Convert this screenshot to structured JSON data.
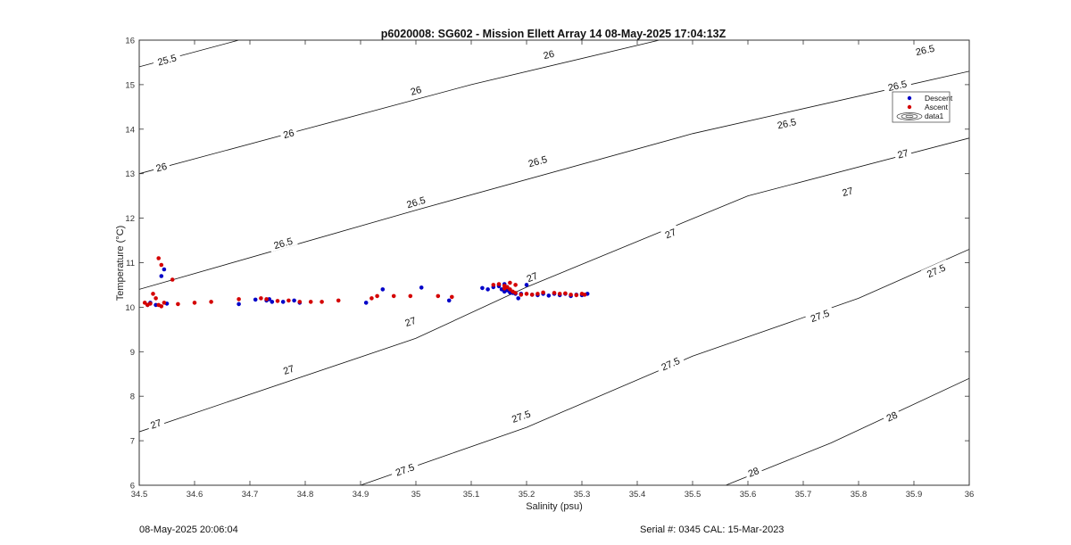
{
  "footer": {
    "left": "08-May-2025 20:06:04",
    "right": "Serial #: 0345  CAL: 15-Mar-2023"
  },
  "colors": {
    "descent": "#0000c8",
    "ascent": "#d40000",
    "contour": "#111111"
  },
  "chart_data": {
    "type": "scatter",
    "title": "p6020008: SG602 - Mission Ellett Array 14 08-May-2025 17:04:13Z",
    "xlabel": "Salinity (psu)",
    "ylabel": "Temperature (°C)",
    "xlim": [
      34.5,
      36
    ],
    "ylim": [
      6,
      16
    ],
    "xticks": [
      34.5,
      34.6,
      34.7,
      34.8,
      34.9,
      35,
      35.1,
      35.2,
      35.3,
      35.4,
      35.5,
      35.6,
      35.7,
      35.8,
      35.9,
      36
    ],
    "xtick_labels": [
      "34.5",
      "34.6",
      "34.7",
      "34.8",
      "34.9",
      "35",
      "35.1",
      "35.2",
      "35.3",
      "35.4",
      "35.5",
      "35.6",
      "35.7",
      "35.8",
      "35.9",
      "36"
    ],
    "yticks": [
      6,
      7,
      8,
      9,
      10,
      11,
      12,
      13,
      14,
      15,
      16
    ],
    "ytick_labels": [
      "6",
      "7",
      "8",
      "9",
      "10",
      "11",
      "12",
      "13",
      "14",
      "15",
      "16"
    ],
    "grid": false,
    "legend": {
      "position": "top-right",
      "entries": [
        "Descent",
        "Ascent",
        "data1"
      ]
    },
    "contours": [
      {
        "level": "25.5",
        "points": [
          [
            34.5,
            15.4
          ],
          [
            34.68,
            16.0
          ]
        ],
        "labels": [
          {
            "x": 34.55,
            "y": 15.56
          }
        ]
      },
      {
        "level": "26",
        "points": [
          [
            34.5,
            13.0
          ],
          [
            34.8,
            14.0
          ],
          [
            35.1,
            15.0
          ],
          [
            35.44,
            16.0
          ]
        ],
        "labels": [
          {
            "x": 34.54,
            "y": 13.15
          },
          {
            "x": 34.77,
            "y": 13.9
          },
          {
            "x": 35.0,
            "y": 14.87
          },
          {
            "x": 35.24,
            "y": 15.68
          }
        ]
      },
      {
        "level": "26.5",
        "points": [
          [
            34.5,
            10.4
          ],
          [
            35.0,
            12.18
          ],
          [
            35.5,
            13.9
          ],
          [
            36.0,
            15.3
          ]
        ],
        "labels": [
          {
            "x": 34.76,
            "y": 11.44
          },
          {
            "x": 35.0,
            "y": 12.36
          },
          {
            "x": 35.22,
            "y": 13.28
          },
          {
            "x": 35.67,
            "y": 14.13
          },
          {
            "x": 35.87,
            "y": 14.98
          },
          {
            "x": 35.92,
            "y": 15.78
          }
        ]
      },
      {
        "level": "27",
        "points": [
          [
            34.5,
            7.2
          ],
          [
            35.0,
            9.3
          ],
          [
            35.2,
            10.45
          ],
          [
            35.6,
            12.5
          ],
          [
            36.0,
            13.8
          ]
        ],
        "labels": [
          {
            "x": 34.53,
            "y": 7.38
          },
          {
            "x": 34.77,
            "y": 8.6
          },
          {
            "x": 34.99,
            "y": 9.68
          },
          {
            "x": 35.21,
            "y": 10.68
          },
          {
            "x": 35.46,
            "y": 11.66
          },
          {
            "x": 35.78,
            "y": 12.6
          },
          {
            "x": 35.88,
            "y": 13.45
          }
        ]
      },
      {
        "level": "27.5",
        "points": [
          [
            34.9,
            6.0
          ],
          [
            35.2,
            7.3
          ],
          [
            35.5,
            8.9
          ],
          [
            35.8,
            10.2
          ],
          [
            36.0,
            11.3
          ]
        ],
        "labels": [
          {
            "x": 34.98,
            "y": 6.35
          },
          {
            "x": 35.19,
            "y": 7.55
          },
          {
            "x": 35.46,
            "y": 8.73
          },
          {
            "x": 35.73,
            "y": 9.81
          },
          {
            "x": 35.94,
            "y": 10.82
          }
        ]
      },
      {
        "level": "28",
        "points": [
          [
            35.56,
            6.0
          ],
          [
            35.75,
            6.95
          ],
          [
            36.0,
            8.4
          ]
        ],
        "labels": [
          {
            "x": 35.61,
            "y": 6.3
          },
          {
            "x": 35.86,
            "y": 7.55
          }
        ]
      }
    ],
    "series": [
      {
        "name": "Descent",
        "marker": "filled-circle",
        "x": [
          34.515,
          34.52,
          34.53,
          34.54,
          34.545,
          34.55,
          34.68,
          34.71,
          34.73,
          34.735,
          34.74,
          34.76,
          34.78,
          34.79,
          34.91,
          34.94,
          35.01,
          35.06,
          35.12,
          35.13,
          35.14,
          35.15,
          35.155,
          35.16,
          35.165,
          35.17,
          35.175,
          35.18,
          35.185,
          35.19,
          35.2,
          35.21,
          35.22,
          35.23,
          35.24,
          35.25,
          35.26,
          35.27,
          35.28,
          35.29,
          35.3,
          35.31,
          35.16,
          35.15,
          35.165,
          35.17
        ],
        "y": [
          10.05,
          10.1,
          10.05,
          10.7,
          10.85,
          10.08,
          10.07,
          10.17,
          10.15,
          10.18,
          10.12,
          10.12,
          10.15,
          10.1,
          10.1,
          10.4,
          10.44,
          10.15,
          10.43,
          10.4,
          10.45,
          10.5,
          10.4,
          10.35,
          10.45,
          10.38,
          10.32,
          10.3,
          10.2,
          10.3,
          10.5,
          10.28,
          10.27,
          10.3,
          10.26,
          10.3,
          10.27,
          10.3,
          10.25,
          10.28,
          10.27,
          10.3,
          10.52,
          10.47,
          10.38,
          10.33
        ]
      },
      {
        "name": "Ascent",
        "marker": "filled-circle",
        "x": [
          34.51,
          34.515,
          34.52,
          34.525,
          34.53,
          34.535,
          34.54,
          34.545,
          34.535,
          34.54,
          34.56,
          34.57,
          34.6,
          34.63,
          34.68,
          34.72,
          34.73,
          34.75,
          34.77,
          34.79,
          34.81,
          34.83,
          34.86,
          34.92,
          34.93,
          34.96,
          34.99,
          35.04,
          35.065,
          35.14,
          35.15,
          35.16,
          35.165,
          35.17,
          35.175,
          35.18,
          35.19,
          35.2,
          35.21,
          35.22,
          35.23,
          35.25,
          35.26,
          35.27,
          35.28,
          35.29,
          35.3,
          35.305,
          35.17,
          35.18,
          35.16
        ],
        "y": [
          10.1,
          10.05,
          10.08,
          10.3,
          10.2,
          10.05,
          10.02,
          10.1,
          11.1,
          10.95,
          10.62,
          10.07,
          10.1,
          10.12,
          10.18,
          10.2,
          10.18,
          10.14,
          10.15,
          10.12,
          10.12,
          10.12,
          10.15,
          10.2,
          10.25,
          10.25,
          10.25,
          10.25,
          10.23,
          10.5,
          10.52,
          10.48,
          10.45,
          10.4,
          10.35,
          10.32,
          10.28,
          10.3,
          10.28,
          10.3,
          10.33,
          10.32,
          10.3,
          10.31,
          10.28,
          10.27,
          10.3,
          10.28,
          10.55,
          10.5,
          10.42
        ]
      }
    ]
  }
}
